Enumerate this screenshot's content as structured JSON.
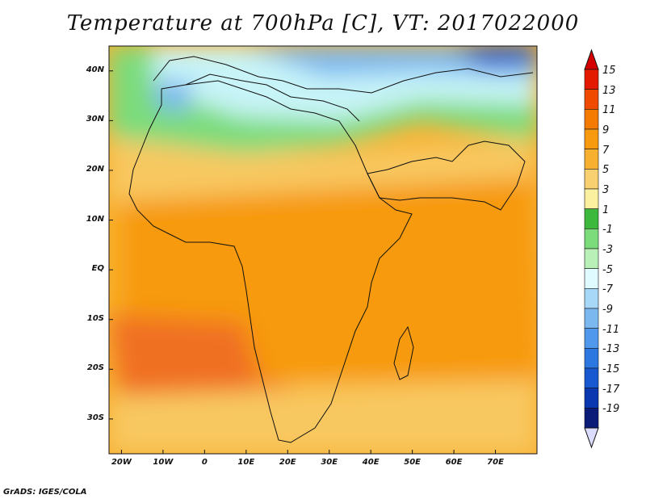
{
  "title": "Temperature at 700hPa [C], VT: 2017022000",
  "credit": "GrADS: IGES/COLA",
  "map": {
    "lon_range": [
      -23,
      80
    ],
    "lat_range": [
      -37,
      45
    ],
    "lat_ticks": [
      {
        "value": 40,
        "label": "40N"
      },
      {
        "value": 30,
        "label": "30N"
      },
      {
        "value": 20,
        "label": "20N"
      },
      {
        "value": 10,
        "label": "10N"
      },
      {
        "value": 0,
        "label": "EQ"
      },
      {
        "value": -10,
        "label": "10S"
      },
      {
        "value": -20,
        "label": "20S"
      },
      {
        "value": -30,
        "label": "30S"
      }
    ],
    "lon_ticks": [
      {
        "value": -20,
        "label": "20W"
      },
      {
        "value": -10,
        "label": "10W"
      },
      {
        "value": 0,
        "label": "0"
      },
      {
        "value": 10,
        "label": "10E"
      },
      {
        "value": 20,
        "label": "20E"
      },
      {
        "value": 30,
        "label": "30E"
      },
      {
        "value": 40,
        "label": "40E"
      },
      {
        "value": 50,
        "label": "50E"
      },
      {
        "value": 60,
        "label": "60E"
      },
      {
        "value": 70,
        "label": "70E"
      }
    ]
  },
  "colorbar": {
    "labels": [
      "15",
      "13",
      "11",
      "9",
      "7",
      "5",
      "3",
      "1",
      "-1",
      "-3",
      "-5",
      "-7",
      "-9",
      "-11",
      "-13",
      "-15",
      "-17",
      "-19"
    ],
    "colors": [
      "#e31a00",
      "#f04a00",
      "#f57a00",
      "#f79a10",
      "#f8b030",
      "#f8d070",
      "#fbf0a0",
      "#3cb83c",
      "#7cdc7c",
      "#b8f0b8",
      "#e0fbff",
      "#a8d8f8",
      "#7cb8f0",
      "#5098ec",
      "#2c78e0",
      "#1858d0",
      "#0a38b0",
      "#0a1c78"
    ],
    "top_arrow_color": "#d40000",
    "bottom_arrow_color": "#dcdcff"
  }
}
